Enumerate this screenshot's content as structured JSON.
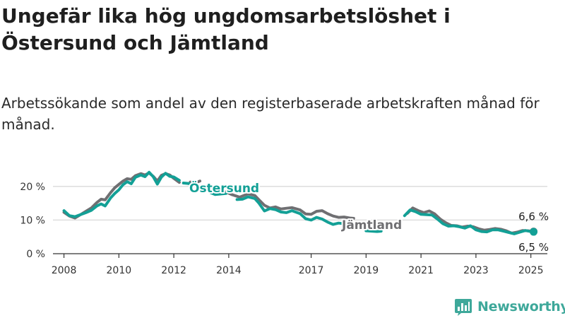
{
  "title": "Ungefär lika hög ungdomsarbetslöshet i Östersund och Jämtland",
  "subtitle": "Arbetssökande som andel av den registerbaserade arbetskraften månad för månad.",
  "brand": {
    "name": "Newsworthy"
  },
  "chart_data": {
    "type": "line",
    "title": "Ungefär lika hög ungdomsarbetslöshet i Östersund och Jämtland",
    "subtitle": "Arbetssökande som andel av den registerbaserade arbetskraften månad för månad.",
    "xlabel": "",
    "ylabel": "",
    "xlim": [
      2007.6,
      2025.6
    ],
    "ylim": [
      0,
      25
    ],
    "y_ticks": [
      0,
      10,
      20
    ],
    "y_tick_labels": [
      "0 %",
      "10 %",
      "20 %"
    ],
    "x_ticks": [
      2008,
      2010,
      2012,
      2014,
      2017,
      2019,
      2021,
      2023,
      2025
    ],
    "x_tick_labels": [
      "2008",
      "2010",
      "2012",
      "2014",
      "2017",
      "2019",
      "2021",
      "2023",
      "2025"
    ],
    "grid": "horizontal",
    "legend": "direct labels on lines",
    "colors": {
      "Jämtland": "#6f6f72",
      "Östersund": "#13a096",
      "grid": "#dddddd",
      "axis": "#333333"
    },
    "end_labels": {
      "Jämtland": "6,6 %",
      "Östersund": "6,5 %"
    },
    "series": [
      {
        "name": "Jämtland",
        "segments": [
          [
            [
              2008.0,
              12.3
            ],
            [
              2008.2,
              11.2
            ],
            [
              2008.4,
              10.6
            ],
            [
              2008.6,
              11.6
            ],
            [
              2008.8,
              12.6
            ],
            [
              2009.0,
              13.6
            ],
            [
              2009.2,
              15.2
            ],
            [
              2009.35,
              16.2
            ],
            [
              2009.5,
              16.0
            ],
            [
              2009.7,
              18.2
            ],
            [
              2009.85,
              19.6
            ],
            [
              2010.0,
              20.6
            ],
            [
              2010.15,
              21.6
            ],
            [
              2010.3,
              22.3
            ],
            [
              2010.45,
              22.1
            ],
            [
              2010.6,
              23.2
            ],
            [
              2010.8,
              23.8
            ],
            [
              2010.95,
              23.4
            ],
            [
              2011.1,
              24.0
            ],
            [
              2011.25,
              23.0
            ],
            [
              2011.4,
              21.6
            ],
            [
              2011.55,
              23.3
            ],
            [
              2011.7,
              23.8
            ],
            [
              2011.85,
              23.4
            ],
            [
              2012.0,
              22.4
            ],
            [
              2012.2,
              21.2
            ]
          ],
          [
            [
              2012.6,
              21.3
            ],
            [
              2012.8,
              21.1
            ],
            [
              2012.95,
              21.6
            ]
          ],
          [
            [
              2013.4,
              19.0
            ],
            [
              2013.6,
              17.8
            ],
            [
              2013.9,
              18.4
            ],
            [
              2014.1,
              17.6
            ],
            [
              2014.4,
              16.8
            ],
            [
              2014.7,
              17.8
            ],
            [
              2014.95,
              17.3
            ],
            [
              2015.1,
              16.0
            ],
            [
              2015.3,
              14.4
            ],
            [
              2015.5,
              13.6
            ],
            [
              2015.7,
              13.9
            ],
            [
              2015.9,
              13.3
            ],
            [
              2016.1,
              13.5
            ],
            [
              2016.3,
              13.7
            ],
            [
              2016.6,
              13.0
            ],
            [
              2016.8,
              11.8
            ],
            [
              2017.0,
              11.7
            ],
            [
              2017.2,
              12.6
            ],
            [
              2017.4,
              12.8
            ],
            [
              2017.6,
              11.9
            ],
            [
              2017.8,
              11.2
            ],
            [
              2018.0,
              10.8
            ],
            [
              2018.2,
              10.9
            ],
            [
              2018.4,
              10.6
            ],
            [
              2018.55,
              10.5
            ]
          ],
          [
            [
              2020.5,
              12.0
            ],
            [
              2020.7,
              13.6
            ],
            [
              2020.9,
              12.8
            ],
            [
              2021.1,
              12.2
            ],
            [
              2021.3,
              12.7
            ],
            [
              2021.5,
              11.8
            ],
            [
              2021.7,
              10.3
            ],
            [
              2021.9,
              9.2
            ],
            [
              2022.1,
              8.4
            ],
            [
              2022.3,
              8.3
            ],
            [
              2022.5,
              7.9
            ],
            [
              2022.7,
              8.2
            ],
            [
              2022.9,
              8.0
            ],
            [
              2023.1,
              7.4
            ],
            [
              2023.3,
              7.0
            ],
            [
              2023.5,
              7.2
            ],
            [
              2023.7,
              7.5
            ],
            [
              2023.9,
              7.3
            ],
            [
              2024.1,
              6.8
            ],
            [
              2024.3,
              6.1
            ],
            [
              2024.5,
              6.4
            ],
            [
              2024.7,
              6.9
            ],
            [
              2024.9,
              6.8
            ],
            [
              2025.1,
              6.6
            ]
          ]
        ]
      },
      {
        "name": "Östersund",
        "segments": [
          [
            [
              2008.0,
              12.8
            ],
            [
              2008.2,
              11.3
            ],
            [
              2008.4,
              11.0
            ],
            [
              2008.6,
              11.6
            ],
            [
              2008.8,
              12.2
            ],
            [
              2009.0,
              12.9
            ],
            [
              2009.2,
              14.2
            ],
            [
              2009.35,
              14.8
            ],
            [
              2009.5,
              14.2
            ],
            [
              2009.7,
              16.6
            ],
            [
              2009.85,
              17.9
            ],
            [
              2010.0,
              19.0
            ],
            [
              2010.15,
              20.5
            ],
            [
              2010.3,
              21.4
            ],
            [
              2010.45,
              20.8
            ],
            [
              2010.6,
              22.7
            ],
            [
              2010.8,
              23.4
            ],
            [
              2010.95,
              22.9
            ],
            [
              2011.1,
              24.2
            ],
            [
              2011.25,
              22.9
            ],
            [
              2011.4,
              20.7
            ],
            [
              2011.55,
              22.8
            ],
            [
              2011.7,
              23.9
            ],
            [
              2011.85,
              23.0
            ],
            [
              2012.0,
              22.8
            ],
            [
              2012.2,
              21.8
            ]
          ],
          [
            [
              2012.35,
              21.0
            ],
            [
              2012.5,
              20.9
            ],
            [
              2012.7,
              20.6
            ]
          ],
          [
            [
              2013.35,
              18.1
            ],
            [
              2013.5,
              17.6
            ],
            [
              2013.9,
              17.9
            ]
          ],
          [
            [
              2014.3,
              16.1
            ],
            [
              2014.5,
              16.2
            ],
            [
              2014.7,
              16.9
            ],
            [
              2014.95,
              16.4
            ],
            [
              2015.1,
              15.0
            ],
            [
              2015.3,
              12.7
            ],
            [
              2015.5,
              13.4
            ],
            [
              2015.7,
              13.1
            ],
            [
              2015.9,
              12.4
            ],
            [
              2016.1,
              12.2
            ],
            [
              2016.3,
              12.8
            ],
            [
              2016.6,
              11.9
            ],
            [
              2016.8,
              10.4
            ],
            [
              2017.0,
              10.0
            ],
            [
              2017.2,
              10.8
            ],
            [
              2017.4,
              10.3
            ],
            [
              2017.6,
              9.4
            ],
            [
              2017.8,
              8.7
            ],
            [
              2018.0,
              9.1
            ],
            [
              2018.2,
              8.9
            ],
            [
              2018.4,
              8.8
            ]
          ],
          [
            [
              2019.0,
              6.8
            ],
            [
              2019.2,
              6.7
            ],
            [
              2019.4,
              6.6
            ],
            [
              2019.55,
              6.7
            ]
          ],
          [
            [
              2020.4,
              11.3
            ],
            [
              2020.6,
              13.0
            ],
            [
              2020.8,
              12.5
            ],
            [
              2021.0,
              11.7
            ],
            [
              2021.2,
              11.6
            ],
            [
              2021.4,
              11.5
            ],
            [
              2021.6,
              10.3
            ],
            [
              2021.8,
              8.9
            ],
            [
              2022.0,
              8.2
            ],
            [
              2022.2,
              8.3
            ],
            [
              2022.4,
              8.0
            ],
            [
              2022.6,
              7.6
            ],
            [
              2022.8,
              8.3
            ],
            [
              2023.0,
              7.1
            ],
            [
              2023.2,
              6.6
            ],
            [
              2023.4,
              6.5
            ],
            [
              2023.6,
              7.1
            ],
            [
              2023.8,
              7.1
            ],
            [
              2024.0,
              6.7
            ],
            [
              2024.2,
              6.3
            ],
            [
              2024.4,
              5.9
            ],
            [
              2024.6,
              6.4
            ],
            [
              2024.8,
              6.9
            ],
            [
              2025.0,
              6.6
            ],
            [
              2025.1,
              6.5
            ]
          ]
        ]
      }
    ]
  }
}
